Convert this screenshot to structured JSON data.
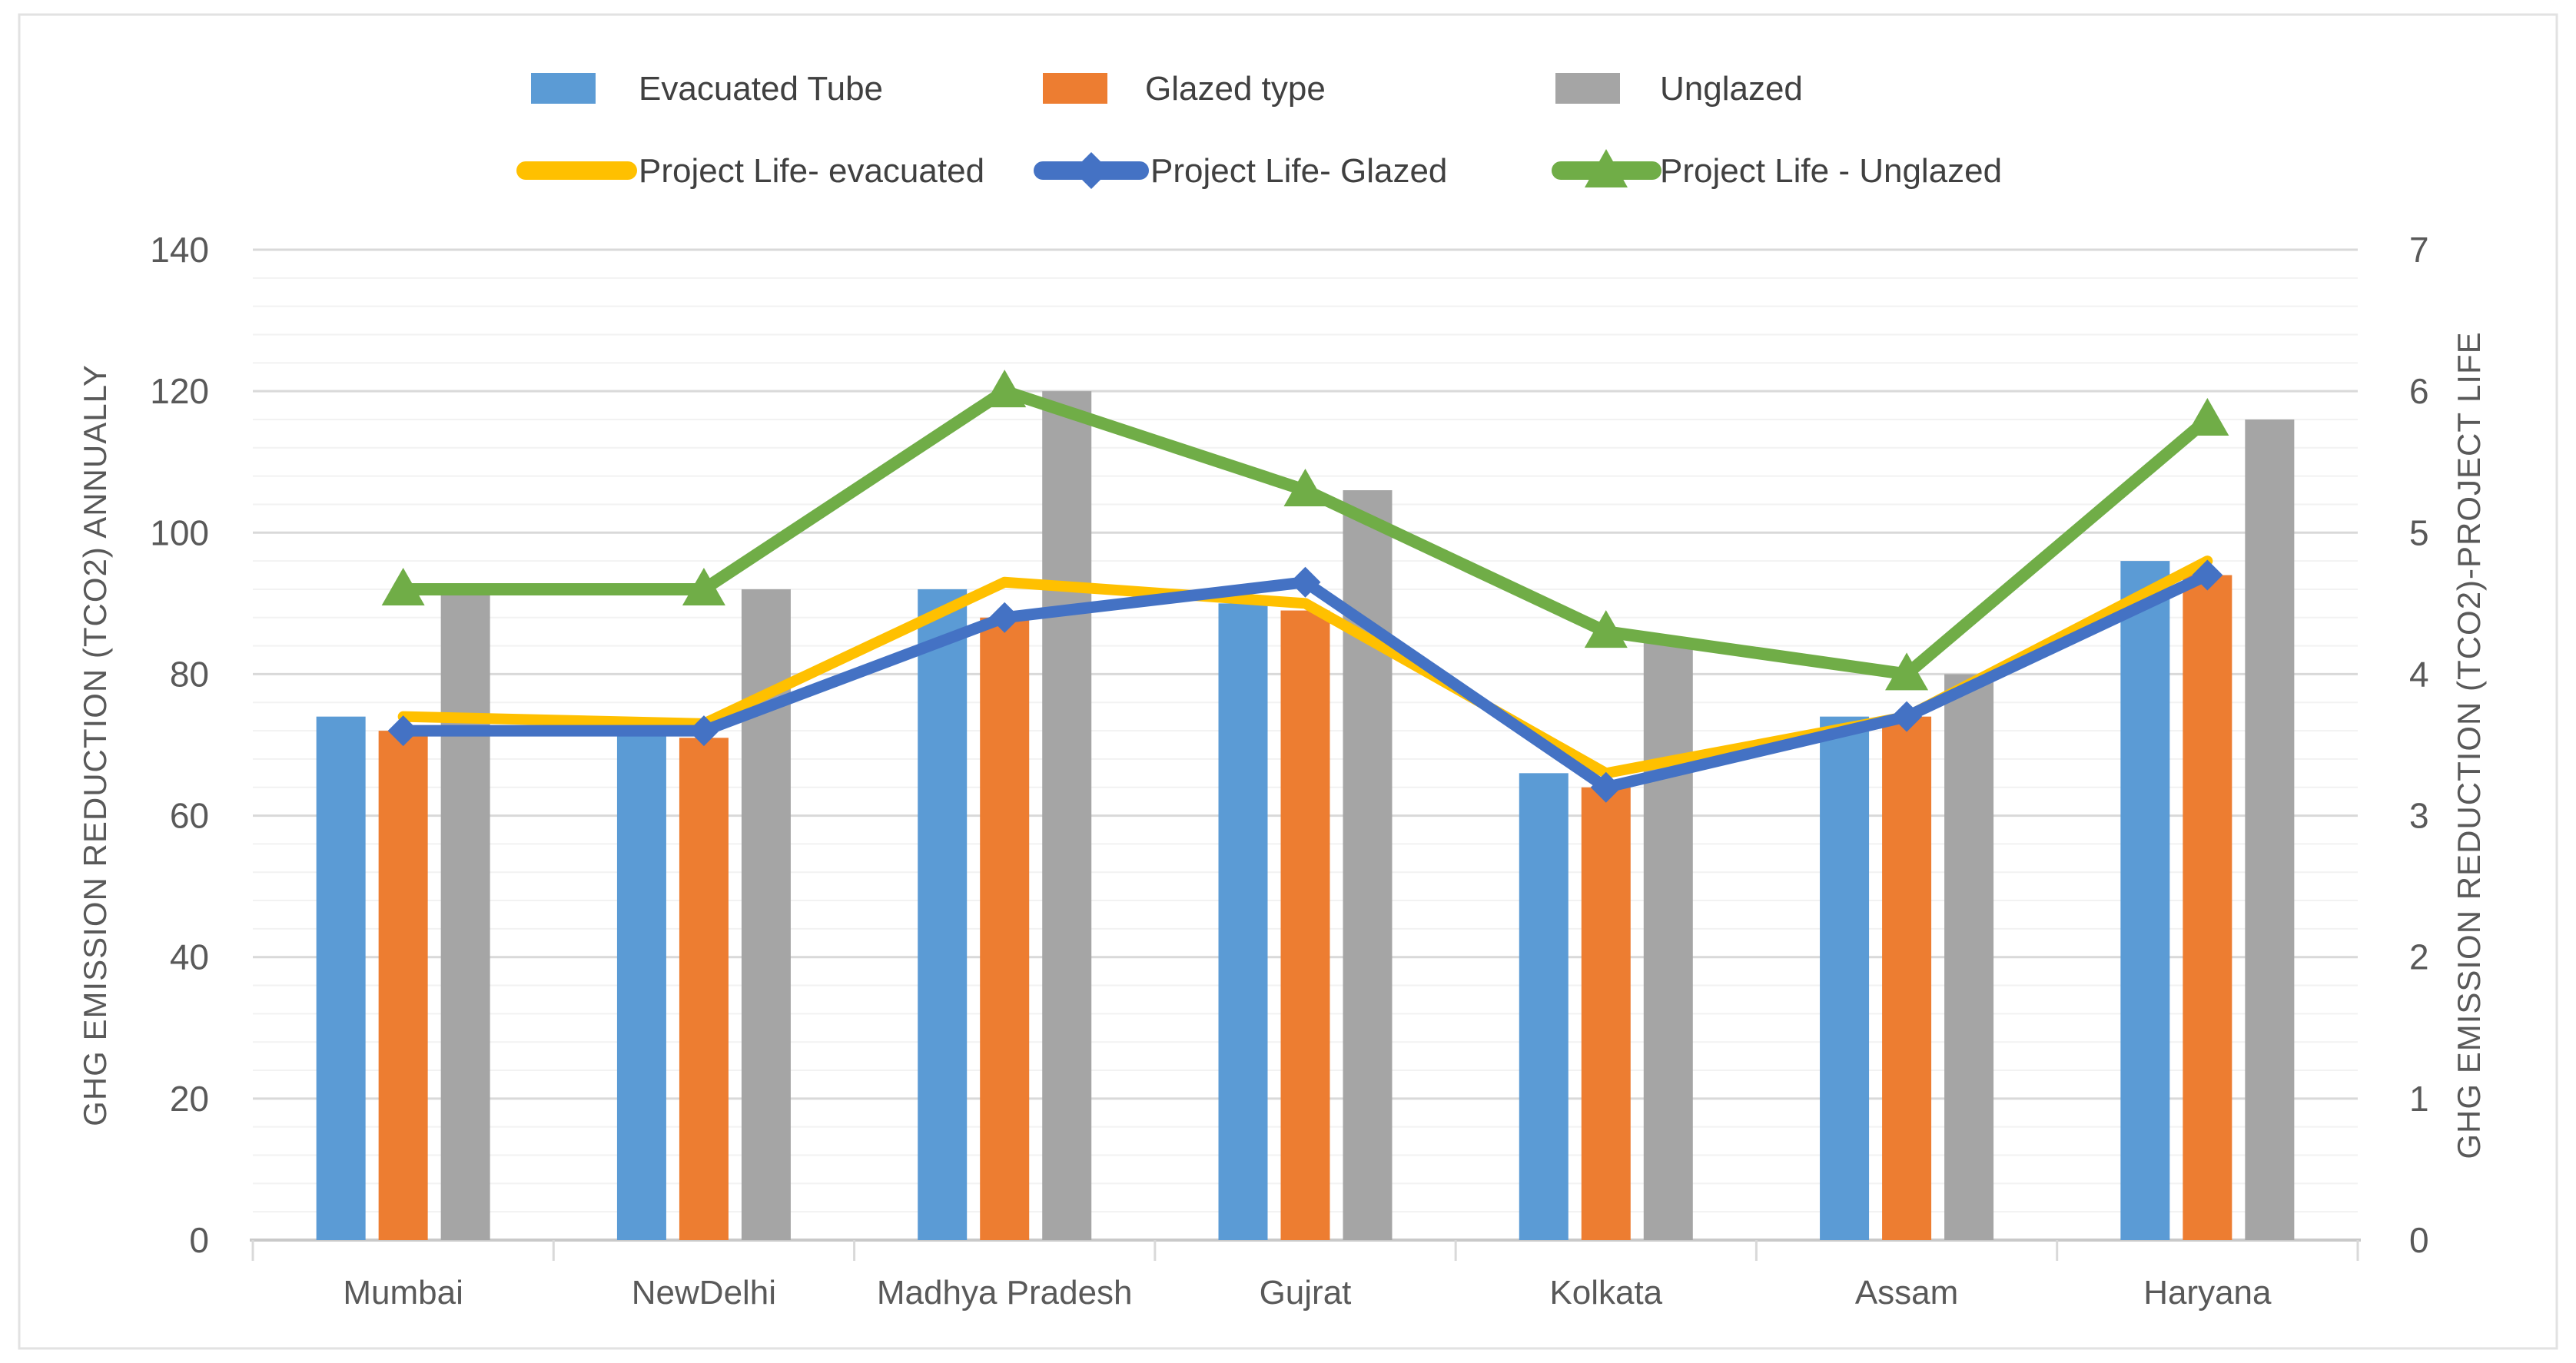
{
  "figure": {
    "background_color": "#FFFFFF",
    "border_color": "#E2E2E2",
    "text_color": "#595959",
    "legend_text_color": "#404040"
  },
  "chart_data": {
    "type": "combo-bar-line",
    "categories": [
      "Mumbai",
      "NewDelhi",
      "Madhya Pradesh",
      "Gujrat",
      "Kolkata",
      "Assam",
      "Haryana"
    ],
    "bar_series": [
      {
        "name": "Evacuated Tube",
        "color": "#5B9BD5",
        "axis": "left",
        "values": [
          74,
          72,
          92,
          90,
          66,
          74,
          96
        ]
      },
      {
        "name": "Glazed type",
        "color": "#ED7D31",
        "axis": "left",
        "values": [
          72,
          71,
          88,
          89,
          64,
          74,
          94
        ]
      },
      {
        "name": "Unglazed",
        "color": "#A5A5A5",
        "axis": "left",
        "values": [
          92,
          92,
          120,
          106,
          85,
          80,
          116
        ]
      }
    ],
    "line_series": [
      {
        "name": "Project Life- evacuated",
        "color": "#FFC000",
        "marker": "none",
        "axis": "right",
        "values": [
          3.7,
          3.65,
          4.65,
          4.5,
          3.3,
          3.7,
          4.8
        ]
      },
      {
        "name": "Project Life- Glazed",
        "color": "#4472C4",
        "marker": "diamond",
        "axis": "right",
        "values": [
          3.6,
          3.6,
          4.4,
          4.65,
          3.2,
          3.7,
          4.7
        ]
      },
      {
        "name": "Project Life - Unglazed",
        "color": "#70AD47",
        "marker": "triangle",
        "axis": "right",
        "values": [
          4.6,
          4.6,
          6.0,
          5.3,
          4.3,
          4.0,
          5.8
        ]
      }
    ],
    "left_axis": {
      "title": "GHG EMISSION REDUCTION (TCO2) ANNUALLY",
      "min": 0,
      "max": 140,
      "major_step": 20,
      "minor_step": 4,
      "tick_labels": [
        "0",
        "20",
        "40",
        "60",
        "80",
        "100",
        "120",
        "140"
      ]
    },
    "right_axis": {
      "title": "GHG EMISSION REDUCTION (TCO2)-PROJECT LIFE",
      "min": 0,
      "max": 7,
      "major_step": 1,
      "tick_labels": [
        "0",
        "1",
        "2",
        "3",
        "4",
        "5",
        "6",
        "7"
      ]
    },
    "grid": {
      "major_color": "#D9D9D9",
      "minor_color": "#F2F2F2",
      "axis_line_color": "#C9C9C9",
      "minor_gridlines_on": true
    },
    "legend_position": "top"
  }
}
